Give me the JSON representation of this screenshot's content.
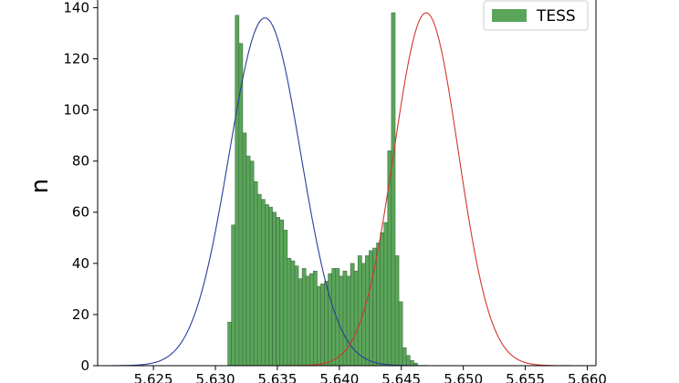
{
  "chart_data": {
    "type": "bar",
    "title": "",
    "xlabel": "",
    "ylabel": "n",
    "xlim": [
      5.6205,
      5.6607
    ],
    "ylim": [
      0,
      143
    ],
    "xticks": [
      5.625,
      5.63,
      5.635,
      5.64,
      5.645,
      5.65,
      5.655,
      5.66
    ],
    "xtick_labels": [
      "5.625",
      "5.630",
      "5.635",
      "5.640",
      "5.645",
      "5.650",
      "5.655",
      "5.660"
    ],
    "yticks": [
      0,
      20,
      40,
      60,
      80,
      100,
      120,
      140
    ],
    "ytick_labels": [
      "0",
      "20",
      "40",
      "60",
      "80",
      "100",
      "120",
      "140"
    ],
    "bin_start": 5.631,
    "bin_width": 0.0003,
    "series": [
      {
        "name": "TESS",
        "color": "#5aa55a",
        "values": [
          17,
          55,
          137,
          126,
          91,
          82,
          80,
          72,
          67,
          65,
          63,
          62,
          60,
          58,
          57,
          53,
          42,
          41,
          39,
          34,
          38,
          35,
          36,
          37,
          31,
          32,
          33,
          36,
          38,
          38,
          35,
          37,
          35,
          40,
          37,
          43,
          40,
          43,
          45,
          46,
          48,
          52,
          56,
          84,
          138,
          43,
          25,
          7,
          4,
          2,
          1
        ]
      }
    ],
    "curves": [
      {
        "color": "#2b3d9b",
        "mu": 5.634,
        "sigma": 0.0029,
        "peak": 136
      },
      {
        "color": "#d2362a",
        "mu": 5.647,
        "sigma": 0.0026,
        "peak": 138
      }
    ],
    "legend": {
      "position": "top-right",
      "label": "TESS",
      "color": "#5aa55a"
    },
    "grid": false
  }
}
